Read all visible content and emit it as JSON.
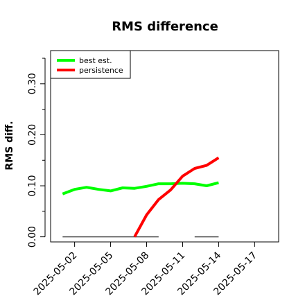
{
  "chart_data": {
    "type": "line",
    "title": "RMS difference",
    "xlabel": "",
    "ylabel": "RMS diff.",
    "x_type": "date",
    "xlim": [
      "2025-04-30",
      "2025-05-19"
    ],
    "ylim": [
      -0.01,
      0.365
    ],
    "x_ticks": [
      "2025-05-02",
      "2025-05-05",
      "2025-05-08",
      "2025-05-11",
      "2025-05-14",
      "2025-05-17"
    ],
    "y_ticks": [
      0.0,
      0.1,
      0.2,
      0.3
    ],
    "y_tick_labels": [
      "0.00",
      "0.10",
      "0.20",
      "0.30"
    ],
    "y_minor_ticks": [
      0.05,
      0.15,
      0.25,
      0.35
    ],
    "grid": false,
    "legend_position": "top-left",
    "series": [
      {
        "name": "best est.",
        "color": "#00ff00",
        "x": [
          "2025-05-01",
          "2025-05-02",
          "2025-05-03",
          "2025-05-04",
          "2025-05-05",
          "2025-05-06",
          "2025-05-07",
          "2025-05-08",
          "2025-05-09",
          "2025-05-10",
          "2025-05-11",
          "2025-05-12",
          "2025-05-13",
          "2025-05-14"
        ],
        "y": [
          0.084,
          0.093,
          0.097,
          0.093,
          0.09,
          0.096,
          0.095,
          0.099,
          0.104,
          0.104,
          0.105,
          0.104,
          0.1,
          0.106
        ]
      },
      {
        "name": "persistence",
        "color": "#ff0000",
        "x": [
          "2025-05-07",
          "2025-05-08",
          "2025-05-09",
          "2025-05-10",
          "2025-05-11",
          "2025-05-12",
          "2025-05-13",
          "2025-05-14"
        ],
        "y": [
          0.0,
          0.043,
          0.073,
          0.092,
          0.119,
          0.134,
          0.14,
          0.155
        ]
      }
    ],
    "reference_segments": [
      {
        "x_start": "2025-05-01",
        "x_end": "2025-05-09",
        "y": 0.0,
        "color": "#555555"
      },
      {
        "x_start": "2025-05-12",
        "x_end": "2025-05-14",
        "y": 0.0,
        "color": "#555555"
      }
    ]
  }
}
